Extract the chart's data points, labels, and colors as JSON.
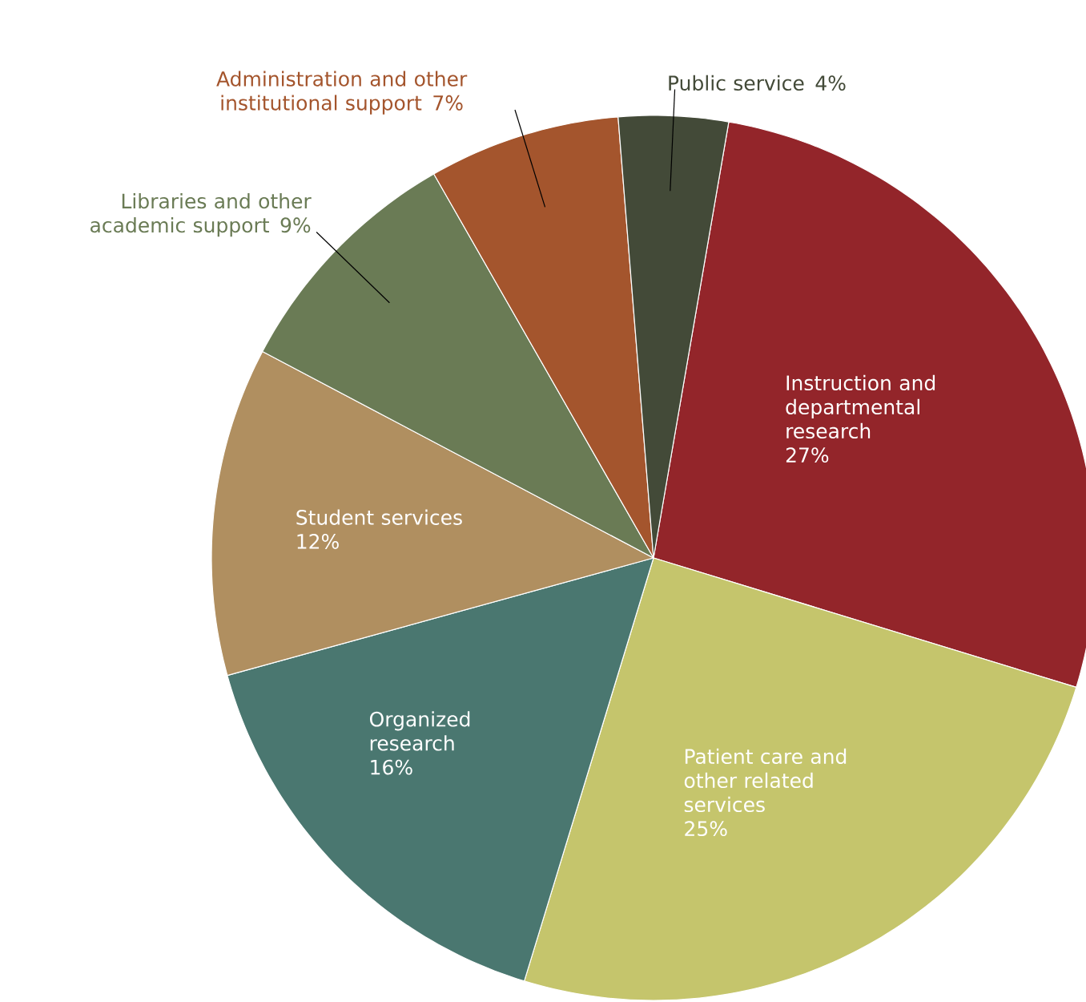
{
  "chart_data": {
    "type": "pie",
    "categories": [
      "Instruction and departmental research",
      "Patient care and other related services",
      "Organized research",
      "Student services",
      "Libraries and other academic support",
      "Administration and other institutional support",
      "Public service"
    ],
    "values": [
      27,
      25,
      16,
      12,
      9,
      7,
      4
    ],
    "value_labels": [
      "27%",
      "25%",
      "16%",
      "12%",
      "9%",
      "7%",
      "4%"
    ],
    "colors": [
      "#93252a",
      "#c5c56c",
      "#4a7770",
      "#b08f60",
      "#6a7b55",
      "#a4552d",
      "#434a38"
    ]
  }
}
